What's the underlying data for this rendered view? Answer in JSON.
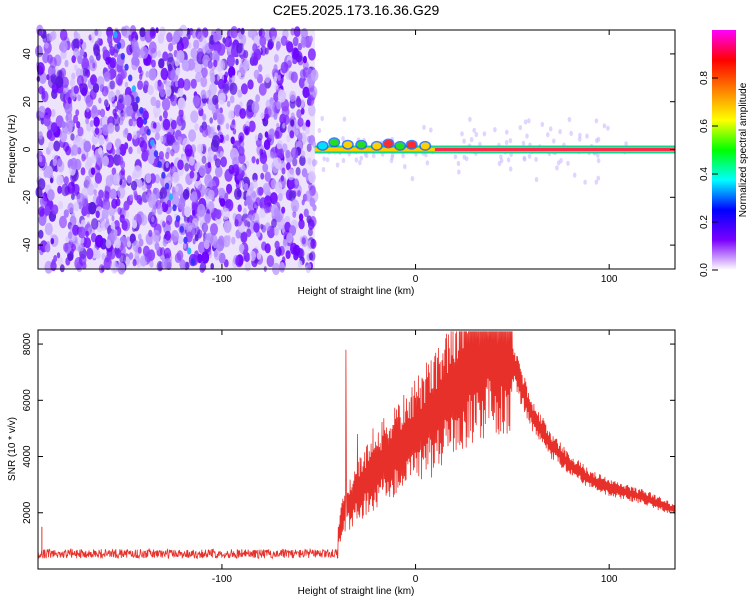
{
  "title": "C2E5.2025.173.16.36.G29",
  "chart_data": [
    {
      "type": "heatmap",
      "xlabel": "Height of straight line (km)",
      "ylabel": "Frequency (Hz)",
      "xlim": [
        -195,
        134
      ],
      "ylim": [
        -50,
        50
      ],
      "x_ticks": [
        -100,
        0,
        100
      ],
      "x_tick_labels": [
        "-100",
        "0",
        "100"
      ],
      "y_ticks": [
        -40,
        -20,
        0,
        20,
        40
      ],
      "y_tick_labels": [
        "-40",
        "-20",
        "0",
        "20",
        "40"
      ],
      "noise_region_x": [
        -195,
        -52
      ],
      "signal_line": {
        "frequency_hz": 0,
        "x_range": [
          -52,
          134
        ]
      },
      "colorbar": {
        "label": "Normalized spectral amplitude",
        "range": [
          0,
          1
        ],
        "ticks": [
          0.0,
          0.2,
          0.4,
          0.6,
          0.8
        ],
        "tick_labels": [
          "0.0",
          "0.2",
          "0.4",
          "0.6",
          "0.8"
        ],
        "colors": [
          "#ffffff",
          "#7a00ff",
          "#0000ff",
          "#00ffff",
          "#00ff00",
          "#ffff00",
          "#ff8000",
          "#ff0000",
          "#ff00ff"
        ]
      },
      "grid": false
    },
    {
      "type": "line",
      "xlabel": "Height of straight line (km)",
      "ylabel": "SNR (10 * v/v)",
      "xlim": [
        -195,
        134
      ],
      "ylim": [
        0,
        8500
      ],
      "x_ticks": [
        -100,
        0,
        100
      ],
      "x_tick_labels": [
        "-100",
        "0",
        "100"
      ],
      "y_ticks": [
        2000,
        4000,
        6000,
        8000
      ],
      "y_tick_labels": [
        "2000",
        "4000",
        "6000",
        "8000"
      ],
      "color": "#e8302a",
      "grid": false,
      "envelope": {
        "x": [
          -195,
          -150,
          -100,
          -60,
          -42,
          -37,
          -30,
          -20,
          -10,
          0,
          10,
          20,
          30,
          40,
          46,
          52,
          60,
          70,
          80,
          90,
          100,
          110,
          120,
          134
        ],
        "y": [
          500,
          520,
          520,
          540,
          600,
          2000,
          2800,
          3600,
          4200,
          4800,
          5600,
          6500,
          7400,
          8000,
          7800,
          7000,
          5500,
          4400,
          3700,
          3200,
          2900,
          2700,
          2500,
          2100
        ]
      },
      "spikes": [
        {
          "x": -36,
          "y": 7800
        },
        {
          "x": -30,
          "y": 4800
        },
        {
          "x": -22,
          "y": 5000
        }
      ]
    }
  ]
}
